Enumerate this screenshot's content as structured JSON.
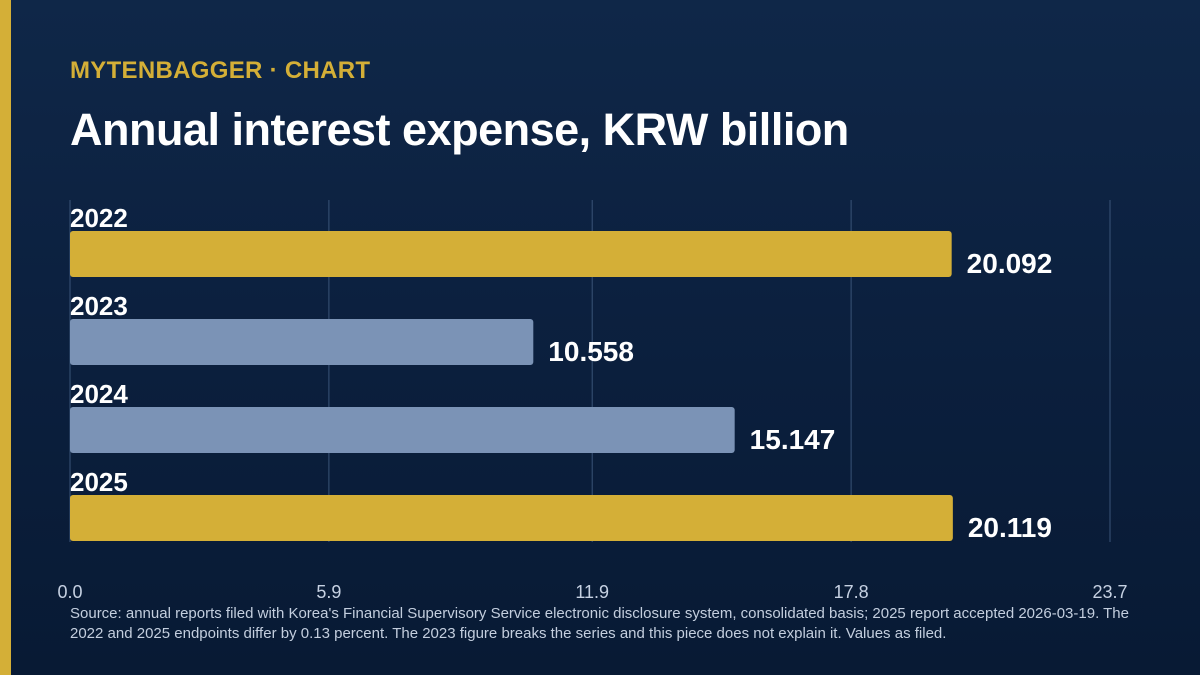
{
  "header": {
    "kicker": "MYTENBAGGER · CHART",
    "title": "Annual interest expense, KRW billion"
  },
  "colors": {
    "highlight": "#d4af37",
    "muted": "#7b93b6",
    "background": "#0b1f3d",
    "grid": "#3a5478"
  },
  "chart_data": {
    "type": "bar",
    "orientation": "horizontal",
    "title": "Annual interest expense, KRW billion",
    "categories": [
      "2022",
      "2023",
      "2024",
      "2025"
    ],
    "values": [
      20.092,
      10.558,
      15.147,
      20.119
    ],
    "value_labels": [
      "20.092",
      "10.558",
      "15.147",
      "20.119"
    ],
    "bar_colors": [
      "#d4af37",
      "#7b93b6",
      "#7b93b6",
      "#d4af37"
    ],
    "xlim": [
      0,
      23.7
    ],
    "xticks": [
      0,
      5.9,
      11.9,
      17.8,
      23.7
    ],
    "xtick_labels": [
      "0.0",
      "5.9",
      "11.9",
      "17.8",
      "23.7"
    ],
    "grid": "vertical",
    "legend": "none"
  },
  "footer": {
    "source": "Source: annual reports filed with Korea's Financial Supervisory Service electronic disclosure system, consolidated basis; 2025 report accepted 2026-03-19. The 2022 and 2025 endpoints differ by 0.13 percent. The 2023 figure breaks the series and this piece does not explain it. Values as filed."
  }
}
